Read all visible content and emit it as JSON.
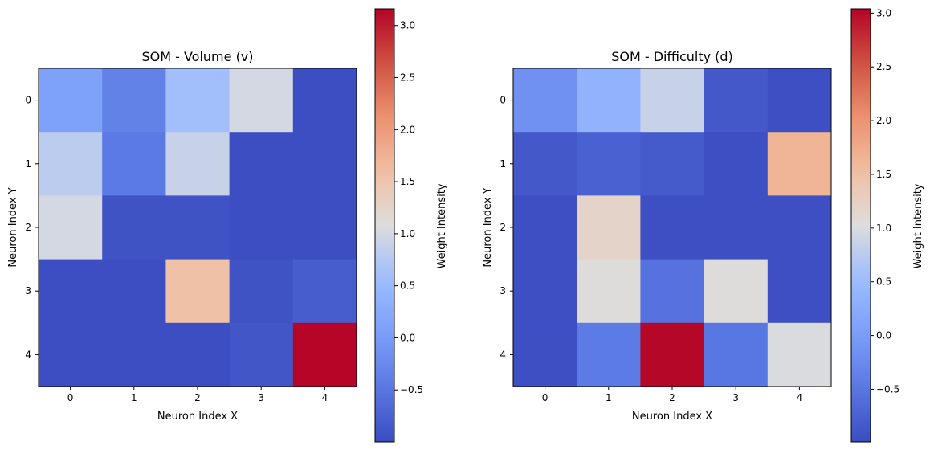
{
  "chart_data": [
    {
      "type": "heatmap",
      "title": "SOM - Volume (v)",
      "xlabel": "Neuron Index X",
      "ylabel": "Neuron Index Y",
      "x_ticks": [
        "0",
        "1",
        "2",
        "3",
        "4"
      ],
      "y_ticks": [
        "0",
        "1",
        "2",
        "3",
        "4"
      ],
      "values": [
        [
          0.1,
          -0.35,
          0.6,
          1.0,
          -0.98
        ],
        [
          0.8,
          -0.45,
          0.9,
          -0.98,
          -0.98
        ],
        [
          1.0,
          -0.92,
          -0.92,
          -0.98,
          -0.98
        ],
        [
          -0.98,
          -0.98,
          1.55,
          -0.92,
          -0.8
        ],
        [
          -0.98,
          -0.98,
          -0.98,
          -0.88,
          3.15
        ]
      ],
      "colormap": "coolwarm",
      "vmin": -1.0,
      "vmax": 3.16,
      "colorbar": {
        "label": "Weight Intensity",
        "ticks": [
          -0.5,
          0.0,
          0.5,
          1.0,
          1.5,
          2.0,
          2.5,
          3.0
        ],
        "tick_labels": [
          "−0.5",
          "0.0",
          "0.5",
          "1.0",
          "1.5",
          "2.0",
          "2.5",
          "3.0"
        ]
      }
    },
    {
      "type": "heatmap",
      "title": "SOM - Difficulty (d)",
      "xlabel": "Neuron Index X",
      "ylabel": "Neuron Index Y",
      "x_ticks": [
        "0",
        "1",
        "2",
        "3",
        "4"
      ],
      "y_ticks": [
        "0",
        "1",
        "2",
        "3",
        "4"
      ],
      "values": [
        [
          -0.15,
          0.35,
          0.85,
          -0.85,
          -0.95
        ],
        [
          -0.85,
          -0.75,
          -0.82,
          -0.95,
          1.65
        ],
        [
          -0.95,
          1.2,
          -0.95,
          -0.95,
          -0.95
        ],
        [
          -0.95,
          1.05,
          -0.55,
          1.05,
          -0.95
        ],
        [
          -0.95,
          -0.45,
          3.02,
          -0.5,
          1.0
        ]
      ],
      "colormap": "coolwarm",
      "vmin": -0.99,
      "vmax": 3.04,
      "colorbar": {
        "label": "Weight Intensity",
        "ticks": [
          -0.5,
          0.0,
          0.5,
          1.0,
          1.5,
          2.0,
          2.5,
          3.0
        ],
        "tick_labels": [
          "−0.5",
          "0.0",
          "0.5",
          "1.0",
          "1.5",
          "2.0",
          "2.5",
          "3.0"
        ]
      }
    }
  ]
}
